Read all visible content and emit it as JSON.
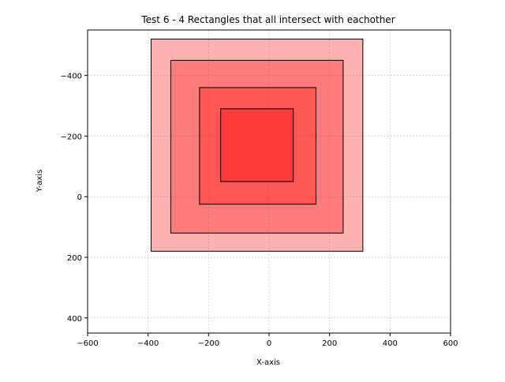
{
  "chart_data": {
    "type": "rectangles",
    "title": "Test 6 - 4 Rectangles that all intersect with eachother",
    "xlabel": "X-axis",
    "ylabel": "Y-axis",
    "xlim": [
      -600,
      600
    ],
    "ylim": [
      450,
      -550
    ],
    "y_inverted": true,
    "grid": true,
    "xticks": [
      -600,
      -400,
      -200,
      0,
      200,
      400,
      600
    ],
    "xtick_labels": [
      "−600",
      "−400",
      "−200",
      "0",
      "200",
      "400",
      "600"
    ],
    "yticks": [
      -400,
      -200,
      0,
      200,
      400
    ],
    "ytick_labels": [
      "−400",
      "−200",
      "0",
      "200",
      "400"
    ],
    "rectangles": [
      {
        "x": -390,
        "y": -520,
        "width": 700,
        "height": 700,
        "fill": "#ff0000",
        "alpha": 0.3,
        "edge": "#000000"
      },
      {
        "x": -325,
        "y": -450,
        "width": 570,
        "height": 570,
        "fill": "#ff0000",
        "alpha": 0.3,
        "edge": "#000000"
      },
      {
        "x": -230,
        "y": -360,
        "width": 385,
        "height": 385,
        "fill": "#ff0000",
        "alpha": 0.3,
        "edge": "#000000"
      },
      {
        "x": -160,
        "y": -290,
        "width": 240,
        "height": 240,
        "fill": "#ff0000",
        "alpha": 0.3,
        "edge": "#000000"
      }
    ]
  }
}
